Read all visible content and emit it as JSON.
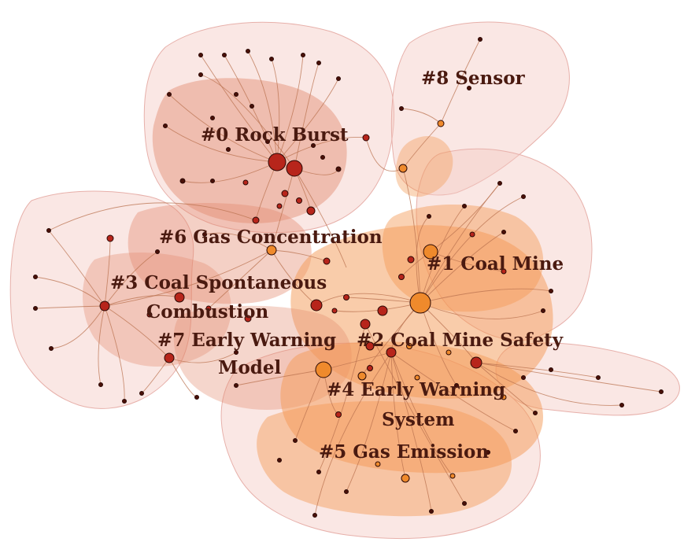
{
  "clusters": [
    {
      "id": "c0",
      "label_lines": [
        "#0 Rock Burst"
      ]
    },
    {
      "id": "c1",
      "label_lines": [
        "#1 Coal Mine"
      ]
    },
    {
      "id": "c2",
      "label_lines": [
        "#2 Coal Mine Safety"
      ]
    },
    {
      "id": "c3",
      "label_lines": [
        "#3 Coal Spontaneous",
        "Combustion"
      ]
    },
    {
      "id": "c4",
      "label_lines": [
        "#4 Early Warning",
        "System"
      ]
    },
    {
      "id": "c5",
      "label_lines": [
        "#5 Gas Emission"
      ]
    },
    {
      "id": "c6",
      "label_lines": [
        "#6 Gas Concentration"
      ]
    },
    {
      "id": "c7",
      "label_lines": [
        "#7 Early Warning",
        "Model"
      ]
    },
    {
      "id": "c8",
      "label_lines": [
        "#8 Sensor"
      ]
    }
  ],
  "colors": {
    "outer_hull": "#f3c9c4",
    "inner_hull_red": "#e38a6e",
    "inner_hull_orange": "#f39a55",
    "edge": "#b9714f",
    "node_dark": "#4a1008",
    "node_red": "#b7251b",
    "node_orange": "#ef8a2c",
    "label": "#4a1a10"
  }
}
